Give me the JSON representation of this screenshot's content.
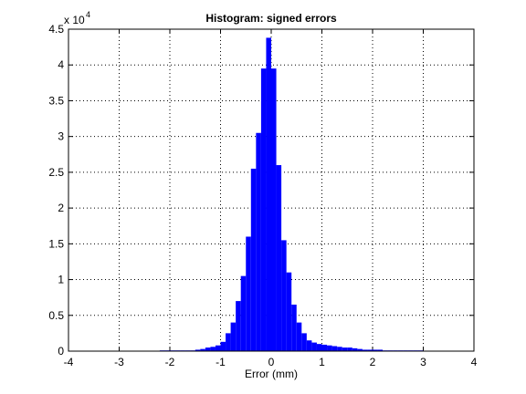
{
  "chart_data": {
    "type": "histogram",
    "title": "Histogram: signed errors",
    "x_label": "Error (mm)",
    "y_scale_label": "x 10",
    "y_scale_power": 4,
    "bins": [
      -2.2,
      -2.1,
      -2.0,
      -1.9,
      -1.8,
      -1.7,
      -1.6,
      -1.5,
      -1.4,
      -1.3,
      -1.2,
      -1.1,
      -1.0,
      -0.9,
      -0.8,
      -0.7,
      -0.6,
      -0.5,
      -0.4,
      -0.3,
      -0.2,
      -0.1,
      0.0,
      0.1,
      0.2,
      0.3,
      0.4,
      0.5,
      0.6,
      0.7,
      0.8,
      0.9,
      1.0,
      1.1,
      1.2,
      1.3,
      1.4,
      1.5,
      1.6,
      1.7,
      1.8,
      1.9,
      2.0,
      2.1,
      2.2,
      2.3,
      2.4,
      2.5,
      2.6,
      2.7,
      2.8,
      2.9,
      3.0
    ],
    "values": [
      0.01,
      0.01,
      0.01,
      0.01,
      0.01,
      0.01,
      0.01,
      0.02,
      0.03,
      0.05,
      0.06,
      0.08,
      0.13,
      0.25,
      0.4,
      0.7,
      1.05,
      1.6,
      2.55,
      3.05,
      3.95,
      4.38,
      3.95,
      2.6,
      1.55,
      1.1,
      0.65,
      0.4,
      0.25,
      0.15,
      0.12,
      0.1,
      0.09,
      0.08,
      0.07,
      0.06,
      0.05,
      0.05,
      0.04,
      0.03,
      0.02,
      0.02,
      0.02,
      0.02,
      0.01,
      0.01,
      0.01,
      0.01,
      0.01,
      0.01,
      0.01,
      0.01
    ],
    "color": "#0000ff",
    "xlim": [
      -4,
      4
    ],
    "xticks": [
      -4,
      -3,
      -2,
      -1,
      0,
      1,
      2,
      3,
      4
    ],
    "ylim": [
      0,
      4.5
    ],
    "yticks": [
      0,
      0.5,
      1,
      1.5,
      2,
      2.5,
      3,
      3.5,
      4,
      4.5
    ],
    "grid": true
  }
}
